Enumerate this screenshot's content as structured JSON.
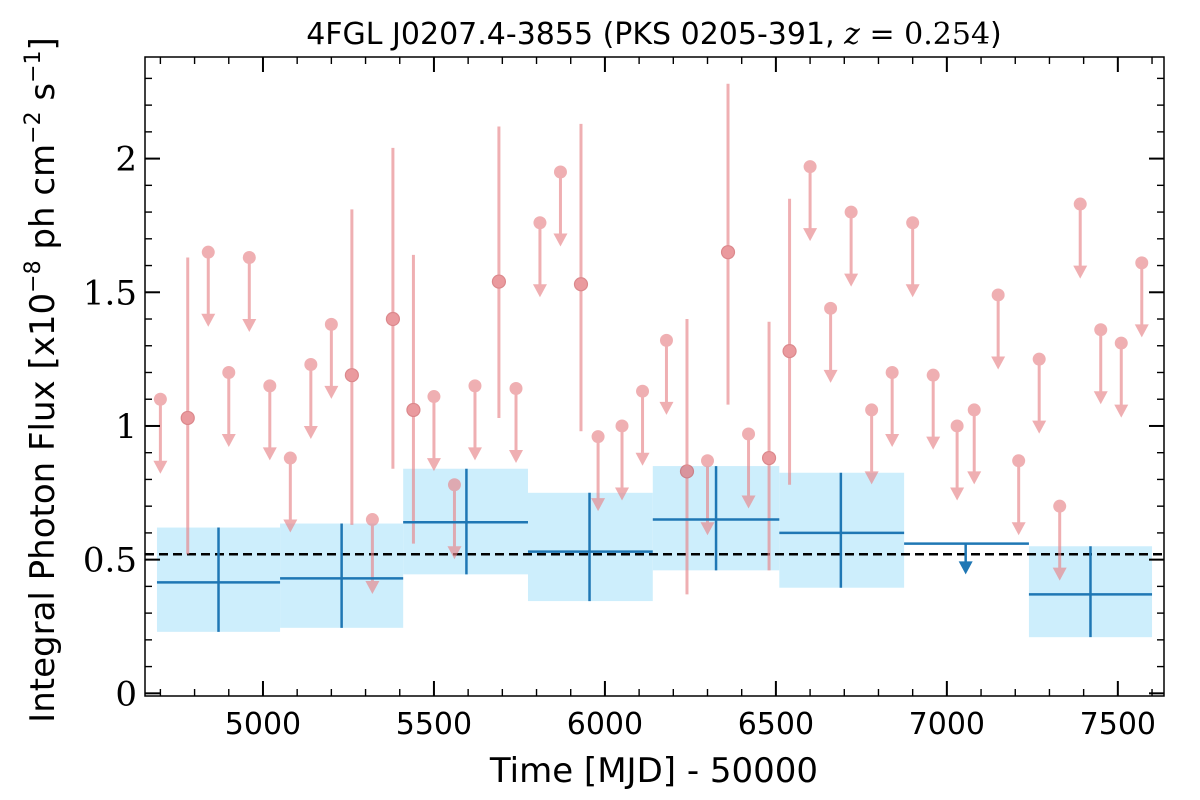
{
  "chart_data": {
    "type": "scatter",
    "title": {
      "prefix": "4FGL J0207.4-3855 (PKS 0205-391, ",
      "math_var": "z",
      "math_rest": " = 0.254",
      "suffix": ")"
    },
    "xlabel": "Time [MJD] - 50000",
    "ylabel": {
      "prefix": "Integral Photon Flux [x10",
      "exp1": "−8",
      "mid": " ph cm",
      "exp2": "−2",
      "mid2": " s",
      "exp3": "−1",
      "suffix": "]"
    },
    "xlim": [
      4655,
      7635
    ],
    "ylim": [
      -0.01,
      2.38
    ],
    "x_ticks": [
      5000,
      5500,
      6000,
      6500,
      7000,
      7500
    ],
    "x_tick_labels": [
      "5000",
      "5500",
      "6000",
      "6500",
      "7000",
      "7500"
    ],
    "y_ticks": [
      0,
      0.5,
      1,
      1.5,
      2
    ],
    "y_tick_labels": [
      "0",
      "0.5",
      "1",
      "1.5",
      "2"
    ],
    "grid": false,
    "mean_flux": 0.52,
    "colors": {
      "short_bin": "#e8858a",
      "long_bin": "#1f77b4",
      "band": "#cdeefc",
      "mean_line": "#000000"
    },
    "short_bin_upper_limits": [
      {
        "x": 4700,
        "y": 1.1
      },
      {
        "x": 4840,
        "y": 1.65
      },
      {
        "x": 4900,
        "y": 1.2
      },
      {
        "x": 4960,
        "y": 1.63
      },
      {
        "x": 5020,
        "y": 1.15
      },
      {
        "x": 5080,
        "y": 0.88
      },
      {
        "x": 5140,
        "y": 1.23
      },
      {
        "x": 5200,
        "y": 1.38
      },
      {
        "x": 5320,
        "y": 0.65
      },
      {
        "x": 5500,
        "y": 1.11
      },
      {
        "x": 5560,
        "y": 0.78
      },
      {
        "x": 5620,
        "y": 1.15
      },
      {
        "x": 5740,
        "y": 1.14
      },
      {
        "x": 5810,
        "y": 1.76
      },
      {
        "x": 5870,
        "y": 1.95
      },
      {
        "x": 5980,
        "y": 0.96
      },
      {
        "x": 6050,
        "y": 1.0
      },
      {
        "x": 6110,
        "y": 1.13
      },
      {
        "x": 6180,
        "y": 1.32
      },
      {
        "x": 6300,
        "y": 0.87
      },
      {
        "x": 6420,
        "y": 0.97
      },
      {
        "x": 6600,
        "y": 1.97
      },
      {
        "x": 6660,
        "y": 1.44
      },
      {
        "x": 6720,
        "y": 1.8
      },
      {
        "x": 6780,
        "y": 1.06
      },
      {
        "x": 6840,
        "y": 1.2
      },
      {
        "x": 6900,
        "y": 1.76
      },
      {
        "x": 6960,
        "y": 1.19
      },
      {
        "x": 7030,
        "y": 1.0
      },
      {
        "x": 7080,
        "y": 1.06
      },
      {
        "x": 7150,
        "y": 1.49
      },
      {
        "x": 7210,
        "y": 0.87
      },
      {
        "x": 7270,
        "y": 1.25
      },
      {
        "x": 7330,
        "y": 0.7
      },
      {
        "x": 7390,
        "y": 1.83
      },
      {
        "x": 7450,
        "y": 1.36
      },
      {
        "x": 7510,
        "y": 1.31
      },
      {
        "x": 7570,
        "y": 1.61
      }
    ],
    "short_bin_detections": [
      {
        "x": 4780,
        "y": 1.03,
        "lo": 0.52,
        "hi": 1.63
      },
      {
        "x": 5260,
        "y": 1.19,
        "lo": 0.63,
        "hi": 1.81
      },
      {
        "x": 5380,
        "y": 1.4,
        "lo": 0.84,
        "hi": 2.04
      },
      {
        "x": 5440,
        "y": 1.06,
        "lo": 0.56,
        "hi": 1.64
      },
      {
        "x": 5690,
        "y": 1.54,
        "lo": 1.03,
        "hi": 2.12
      },
      {
        "x": 5930,
        "y": 1.53,
        "lo": 0.98,
        "hi": 2.13
      },
      {
        "x": 6240,
        "y": 0.83,
        "lo": 0.37,
        "hi": 1.4
      },
      {
        "x": 6360,
        "y": 1.65,
        "lo": 1.08,
        "hi": 2.28
      },
      {
        "x": 6480,
        "y": 0.88,
        "lo": 0.46,
        "hi": 1.39
      },
      {
        "x": 6540,
        "y": 1.28,
        "lo": 0.78,
        "hi": 1.85
      }
    ],
    "long_bins": [
      {
        "x0": 4690,
        "x1": 5050,
        "x": 4870,
        "y": 0.415,
        "lo": 0.23,
        "hi": 0.62
      },
      {
        "x0": 5050,
        "x1": 5410,
        "x": 5230,
        "y": 0.43,
        "lo": 0.245,
        "hi": 0.635
      },
      {
        "x0": 5410,
        "x1": 5775,
        "x": 5595,
        "y": 0.64,
        "lo": 0.445,
        "hi": 0.84
      },
      {
        "x0": 5775,
        "x1": 6140,
        "x": 5955,
        "y": 0.53,
        "lo": 0.345,
        "hi": 0.75
      },
      {
        "x0": 6140,
        "x1": 6510,
        "x": 6325,
        "y": 0.65,
        "lo": 0.46,
        "hi": 0.85
      },
      {
        "x0": 6510,
        "x1": 6875,
        "x": 6690,
        "y": 0.6,
        "lo": 0.395,
        "hi": 0.825
      },
      {
        "x0": 6875,
        "x1": 7240,
        "x": 7055,
        "y": 0.56,
        "upper_limit": true
      },
      {
        "x0": 7240,
        "x1": 7600,
        "x": 7420,
        "y": 0.37,
        "lo": 0.21,
        "hi": 0.55
      }
    ]
  }
}
